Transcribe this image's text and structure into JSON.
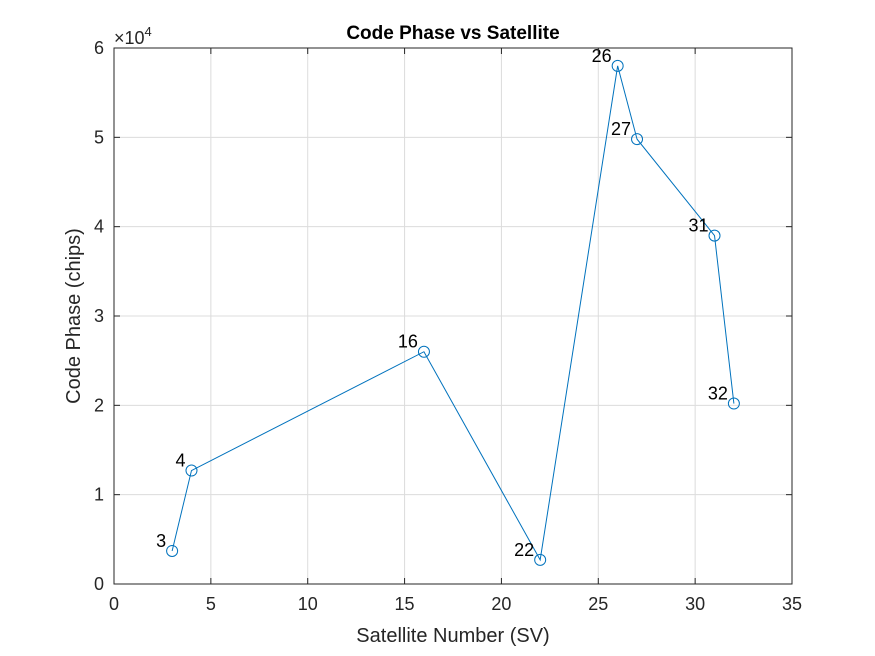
{
  "chart_data": {
    "type": "line",
    "title": "Code Phase vs Satellite",
    "xlabel": "Satellite Number (SV)",
    "ylabel": "Code Phase (chips)",
    "xlim": [
      0,
      35
    ],
    "ylim": [
      0,
      60000
    ],
    "xticks": [
      0,
      5,
      10,
      15,
      20,
      25,
      30,
      35
    ],
    "xtick_labels": [
      "0",
      "5",
      "10",
      "15",
      "20",
      "25",
      "30",
      "35"
    ],
    "yticks": [
      0,
      10000,
      20000,
      30000,
      40000,
      50000,
      60000
    ],
    "ytick_labels": [
      "0",
      "1",
      "2",
      "3",
      "4",
      "5",
      "6"
    ],
    "y_exponent_label": "×10",
    "y_exponent_power": "4",
    "grid": true,
    "marker": "circle",
    "series": [
      {
        "color": "#0072BD",
        "x": [
          3,
          4,
          16,
          22,
          26,
          27,
          31,
          32
        ],
        "y": [
          3700,
          12700,
          26000,
          2700,
          58000,
          49800,
          39000,
          20200
        ],
        "labels": [
          "3",
          "4",
          "16",
          "22",
          "26",
          "27",
          "31",
          "32"
        ]
      }
    ]
  }
}
